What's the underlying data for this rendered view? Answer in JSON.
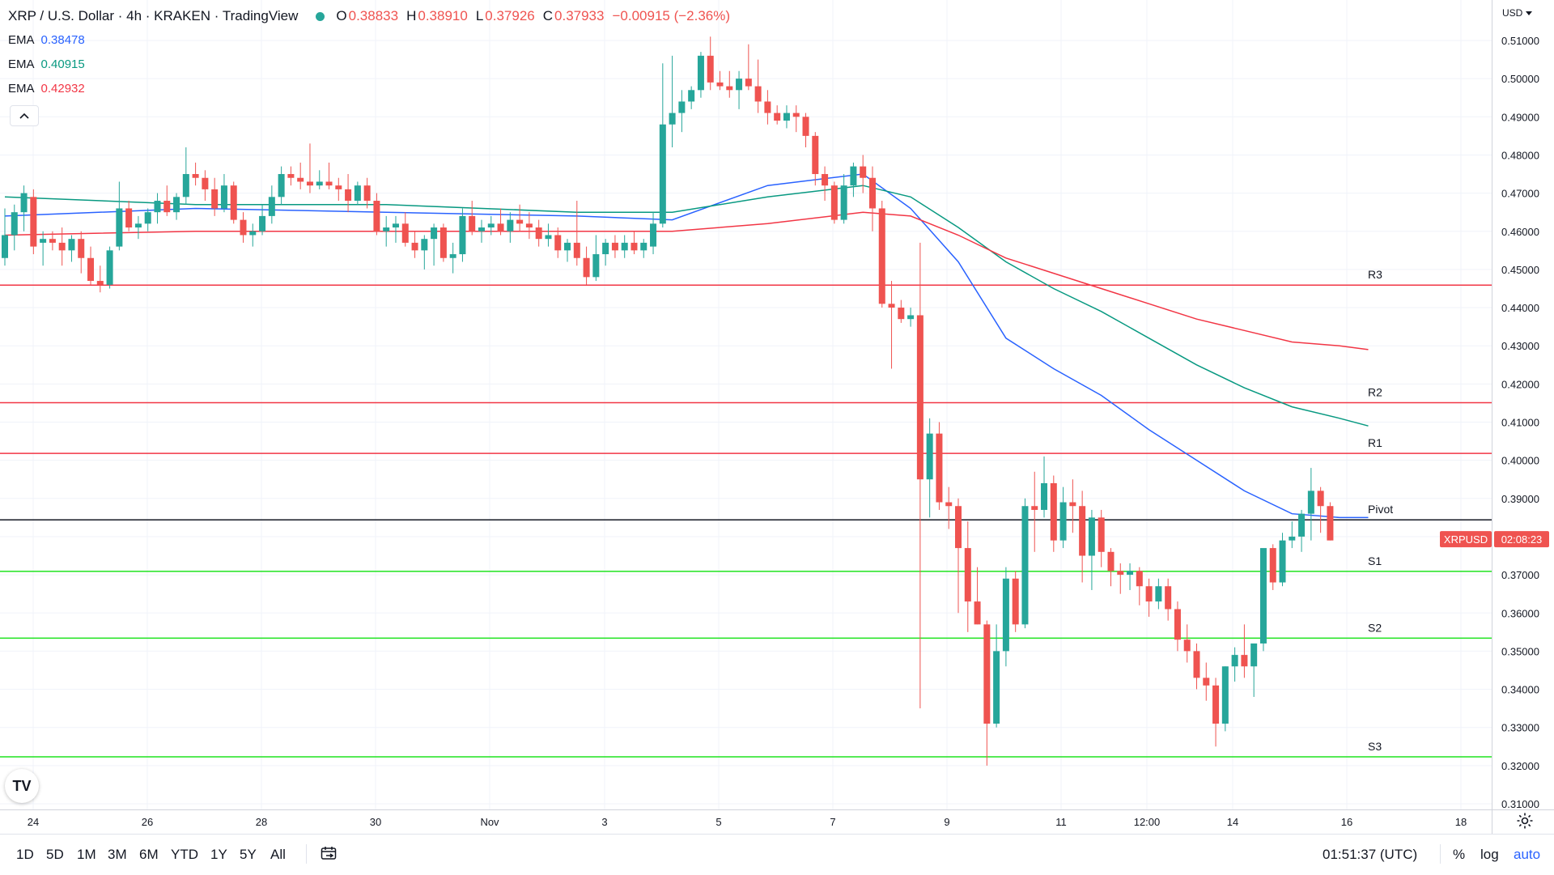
{
  "header": {
    "symbol": "XRP / U.S. Dollar · 4h · KRAKEN · TradingView",
    "ohlc": [
      {
        "label": "O",
        "value": "0.38833"
      },
      {
        "label": "H",
        "value": "0.38910"
      },
      {
        "label": "L",
        "value": "0.37926"
      },
      {
        "label": "C",
        "value": "0.37933"
      },
      {
        "label": "",
        "value": "−0.00915 (−2.36%)"
      }
    ],
    "status_color": "#26a69a"
  },
  "ema_rows": [
    {
      "name": "EMA",
      "value": "0.38478",
      "color": "#2962ff"
    },
    {
      "name": "EMA",
      "value": "0.40915",
      "color": "#089981"
    },
    {
      "name": "EMA",
      "value": "0.42932",
      "color": "#f23645"
    }
  ],
  "currency": "USD",
  "collapse_icon": "chevron-up-icon",
  "logo_text": "TV",
  "bottom": {
    "ranges": [
      "1D",
      "5D",
      "1M",
      "3M",
      "6M",
      "YTD",
      "1Y",
      "5Y",
      "All"
    ],
    "clock": "01:51:37 (UTC)",
    "options": [
      "%",
      "log",
      "auto"
    ],
    "auto_color": "#2962ff"
  },
  "chart_data": {
    "type": "candlestick",
    "title": "XRP / U.S. Dollar · 4h · KRAKEN",
    "ylim": [
      0.31,
      0.51
    ],
    "y_ticks": [
      "0.51000",
      "0.50000",
      "0.49000",
      "0.48000",
      "0.47000",
      "0.46000",
      "0.45000",
      "0.44000",
      "0.43000",
      "0.42000",
      "0.41000",
      "0.40000",
      "0.39000",
      "0.38000",
      "0.37000",
      "0.36000",
      "0.35000",
      "0.34000",
      "0.33000",
      "0.32000",
      "0.31000"
    ],
    "x_ticks": [
      "24",
      "26",
      "28",
      "30",
      "Nov",
      "3",
      "5",
      "7",
      "9",
      "11",
      "12:00",
      "14",
      "16",
      "18"
    ],
    "up_color": "#26a69a",
    "down_color": "#ef5350",
    "candles": [
      [
        0.453,
        0.466,
        0.451,
        0.459
      ],
      [
        0.459,
        0.467,
        0.455,
        0.465
      ],
      [
        0.465,
        0.472,
        0.46,
        0.47
      ],
      [
        0.469,
        0.471,
        0.454,
        0.456
      ],
      [
        0.457,
        0.46,
        0.451,
        0.458
      ],
      [
        0.458,
        0.46,
        0.455,
        0.457
      ],
      [
        0.457,
        0.461,
        0.451,
        0.455
      ],
      [
        0.455,
        0.459,
        0.452,
        0.458
      ],
      [
        0.458,
        0.46,
        0.449,
        0.453
      ],
      [
        0.453,
        0.456,
        0.446,
        0.447
      ],
      [
        0.447,
        0.451,
        0.444,
        0.446
      ],
      [
        0.446,
        0.456,
        0.445,
        0.455
      ],
      [
        0.456,
        0.473,
        0.455,
        0.466
      ],
      [
        0.466,
        0.468,
        0.46,
        0.461
      ],
      [
        0.461,
        0.464,
        0.458,
        0.462
      ],
      [
        0.462,
        0.466,
        0.46,
        0.465
      ],
      [
        0.465,
        0.47,
        0.462,
        0.468
      ],
      [
        0.468,
        0.472,
        0.464,
        0.465
      ],
      [
        0.465,
        0.47,
        0.463,
        0.469
      ],
      [
        0.469,
        0.482,
        0.467,
        0.475
      ],
      [
        0.475,
        0.478,
        0.472,
        0.474
      ],
      [
        0.474,
        0.476,
        0.468,
        0.471
      ],
      [
        0.471,
        0.474,
        0.464,
        0.466
      ],
      [
        0.466,
        0.475,
        0.465,
        0.472
      ],
      [
        0.472,
        0.473,
        0.462,
        0.463
      ],
      [
        0.463,
        0.465,
        0.457,
        0.459
      ],
      [
        0.459,
        0.462,
        0.456,
        0.46
      ],
      [
        0.46,
        0.467,
        0.459,
        0.464
      ],
      [
        0.464,
        0.472,
        0.462,
        0.469
      ],
      [
        0.469,
        0.477,
        0.467,
        0.475
      ],
      [
        0.475,
        0.477,
        0.472,
        0.474
      ],
      [
        0.474,
        0.478,
        0.471,
        0.473
      ],
      [
        0.473,
        0.483,
        0.47,
        0.472
      ],
      [
        0.472,
        0.476,
        0.471,
        0.473
      ],
      [
        0.473,
        0.478,
        0.471,
        0.472
      ],
      [
        0.472,
        0.474,
        0.468,
        0.471
      ],
      [
        0.471,
        0.475,
        0.465,
        0.468
      ],
      [
        0.468,
        0.473,
        0.467,
        0.472
      ],
      [
        0.472,
        0.474,
        0.466,
        0.468
      ],
      [
        0.468,
        0.47,
        0.459,
        0.46
      ],
      [
        0.46,
        0.464,
        0.456,
        0.461
      ],
      [
        0.461,
        0.464,
        0.457,
        0.462
      ],
      [
        0.462,
        0.465,
        0.456,
        0.457
      ],
      [
        0.457,
        0.46,
        0.453,
        0.455
      ],
      [
        0.455,
        0.459,
        0.45,
        0.458
      ],
      [
        0.458,
        0.462,
        0.451,
        0.461
      ],
      [
        0.461,
        0.462,
        0.452,
        0.453
      ],
      [
        0.453,
        0.457,
        0.449,
        0.454
      ],
      [
        0.454,
        0.466,
        0.452,
        0.464
      ],
      [
        0.464,
        0.468,
        0.459,
        0.46
      ],
      [
        0.46,
        0.463,
        0.457,
        0.461
      ],
      [
        0.461,
        0.464,
        0.459,
        0.462
      ],
      [
        0.462,
        0.466,
        0.459,
        0.46
      ],
      [
        0.46,
        0.465,
        0.457,
        0.463
      ],
      [
        0.463,
        0.467,
        0.46,
        0.462
      ],
      [
        0.462,
        0.465,
        0.458,
        0.461
      ],
      [
        0.461,
        0.463,
        0.456,
        0.458
      ],
      [
        0.458,
        0.462,
        0.456,
        0.459
      ],
      [
        0.459,
        0.461,
        0.453,
        0.455
      ],
      [
        0.455,
        0.458,
        0.452,
        0.457
      ],
      [
        0.457,
        0.468,
        0.451,
        0.453
      ],
      [
        0.453,
        0.456,
        0.446,
        0.448
      ],
      [
        0.448,
        0.459,
        0.447,
        0.454
      ],
      [
        0.454,
        0.458,
        0.451,
        0.457
      ],
      [
        0.457,
        0.459,
        0.453,
        0.455
      ],
      [
        0.455,
        0.459,
        0.453,
        0.457
      ],
      [
        0.457,
        0.46,
        0.454,
        0.455
      ],
      [
        0.455,
        0.458,
        0.453,
        0.457
      ],
      [
        0.456,
        0.465,
        0.454,
        0.462
      ],
      [
        0.462,
        0.504,
        0.461,
        0.488
      ],
      [
        0.488,
        0.506,
        0.482,
        0.491
      ],
      [
        0.491,
        0.497,
        0.486,
        0.494
      ],
      [
        0.494,
        0.498,
        0.492,
        0.497
      ],
      [
        0.497,
        0.507,
        0.495,
        0.506
      ],
      [
        0.506,
        0.511,
        0.497,
        0.499
      ],
      [
        0.499,
        0.502,
        0.497,
        0.498
      ],
      [
        0.498,
        0.502,
        0.495,
        0.497
      ],
      [
        0.497,
        0.502,
        0.492,
        0.5
      ],
      [
        0.5,
        0.509,
        0.497,
        0.498
      ],
      [
        0.498,
        0.505,
        0.491,
        0.494
      ],
      [
        0.494,
        0.497,
        0.488,
        0.491
      ],
      [
        0.491,
        0.493,
        0.488,
        0.489
      ],
      [
        0.489,
        0.493,
        0.487,
        0.491
      ],
      [
        0.491,
        0.493,
        0.486,
        0.49
      ],
      [
        0.49,
        0.491,
        0.482,
        0.485
      ],
      [
        0.485,
        0.486,
        0.472,
        0.475
      ],
      [
        0.475,
        0.477,
        0.468,
        0.472
      ],
      [
        0.472,
        0.473,
        0.462,
        0.463
      ],
      [
        0.463,
        0.475,
        0.462,
        0.472
      ],
      [
        0.472,
        0.478,
        0.469,
        0.477
      ],
      [
        0.477,
        0.48,
        0.47,
        0.474
      ],
      [
        0.474,
        0.477,
        0.46,
        0.466
      ],
      [
        0.466,
        0.468,
        0.44,
        0.441
      ],
      [
        0.441,
        0.447,
        0.424,
        0.44
      ],
      [
        0.44,
        0.442,
        0.436,
        0.437
      ],
      [
        0.437,
        0.44,
        0.435,
        0.438
      ],
      [
        0.438,
        0.457,
        0.335,
        0.395
      ],
      [
        0.395,
        0.411,
        0.385,
        0.407
      ],
      [
        0.407,
        0.41,
        0.387,
        0.389
      ],
      [
        0.389,
        0.393,
        0.382,
        0.388
      ],
      [
        0.388,
        0.39,
        0.36,
        0.377
      ],
      [
        0.377,
        0.384,
        0.355,
        0.363
      ],
      [
        0.363,
        0.372,
        0.357,
        0.357
      ],
      [
        0.357,
        0.358,
        0.32,
        0.331
      ],
      [
        0.331,
        0.357,
        0.33,
        0.35
      ],
      [
        0.35,
        0.372,
        0.346,
        0.369
      ],
      [
        0.369,
        0.371,
        0.355,
        0.357
      ],
      [
        0.357,
        0.39,
        0.356,
        0.388
      ],
      [
        0.388,
        0.397,
        0.376,
        0.387
      ],
      [
        0.387,
        0.401,
        0.385,
        0.394
      ],
      [
        0.394,
        0.396,
        0.376,
        0.379
      ],
      [
        0.379,
        0.393,
        0.377,
        0.389
      ],
      [
        0.389,
        0.395,
        0.381,
        0.388
      ],
      [
        0.388,
        0.392,
        0.368,
        0.375
      ],
      [
        0.375,
        0.387,
        0.366,
        0.385
      ],
      [
        0.385,
        0.387,
        0.372,
        0.376
      ],
      [
        0.376,
        0.377,
        0.367,
        0.371
      ],
      [
        0.371,
        0.373,
        0.365,
        0.37
      ],
      [
        0.37,
        0.373,
        0.366,
        0.371
      ],
      [
        0.371,
        0.372,
        0.362,
        0.367
      ],
      [
        0.367,
        0.369,
        0.359,
        0.363
      ],
      [
        0.363,
        0.369,
        0.361,
        0.367
      ],
      [
        0.367,
        0.369,
        0.358,
        0.361
      ],
      [
        0.361,
        0.363,
        0.35,
        0.353
      ],
      [
        0.353,
        0.357,
        0.347,
        0.35
      ],
      [
        0.35,
        0.352,
        0.34,
        0.343
      ],
      [
        0.343,
        0.347,
        0.337,
        0.341
      ],
      [
        0.341,
        0.343,
        0.325,
        0.331
      ],
      [
        0.331,
        0.346,
        0.329,
        0.346
      ],
      [
        0.346,
        0.351,
        0.342,
        0.349
      ],
      [
        0.349,
        0.357,
        0.343,
        0.346
      ],
      [
        0.346,
        0.352,
        0.338,
        0.352
      ],
      [
        0.352,
        0.376,
        0.35,
        0.377
      ],
      [
        0.377,
        0.378,
        0.366,
        0.368
      ],
      [
        0.368,
        0.381,
        0.367,
        0.379
      ],
      [
        0.379,
        0.384,
        0.377,
        0.38
      ],
      [
        0.38,
        0.387,
        0.376,
        0.386
      ],
      [
        0.386,
        0.398,
        0.379,
        0.392
      ],
      [
        0.392,
        0.393,
        0.381,
        0.388
      ],
      [
        0.388,
        0.389,
        0.379,
        0.379
      ]
    ],
    "ema_series": [
      {
        "name": "EMA",
        "value_label": "0.38478",
        "color": "#2962ff",
        "points": [
          [
            0,
            0.464
          ],
          [
            20,
            0.466
          ],
          [
            40,
            0.465
          ],
          [
            60,
            0.464
          ],
          [
            70,
            0.463
          ],
          [
            80,
            0.472
          ],
          [
            90,
            0.475
          ],
          [
            95,
            0.466
          ],
          [
            100,
            0.452
          ],
          [
            105,
            0.432
          ],
          [
            110,
            0.424
          ],
          [
            115,
            0.417
          ],
          [
            120,
            0.408
          ],
          [
            125,
            0.4
          ],
          [
            130,
            0.392
          ],
          [
            135,
            0.386
          ],
          [
            140,
            0.385
          ],
          [
            143,
            0.385
          ]
        ]
      },
      {
        "name": "EMA",
        "value_label": "0.40915",
        "color": "#089981",
        "points": [
          [
            0,
            0.469
          ],
          [
            20,
            0.467
          ],
          [
            40,
            0.467
          ],
          [
            60,
            0.465
          ],
          [
            70,
            0.465
          ],
          [
            80,
            0.469
          ],
          [
            90,
            0.472
          ],
          [
            95,
            0.469
          ],
          [
            100,
            0.461
          ],
          [
            105,
            0.452
          ],
          [
            110,
            0.445
          ],
          [
            115,
            0.439
          ],
          [
            120,
            0.432
          ],
          [
            125,
            0.425
          ],
          [
            130,
            0.419
          ],
          [
            135,
            0.414
          ],
          [
            140,
            0.411
          ],
          [
            143,
            0.409
          ]
        ]
      },
      {
        "name": "EMA",
        "value_label": "0.42932",
        "color": "#f23645",
        "points": [
          [
            0,
            0.459
          ],
          [
            20,
            0.46
          ],
          [
            40,
            0.46
          ],
          [
            60,
            0.46
          ],
          [
            70,
            0.46
          ],
          [
            80,
            0.462
          ],
          [
            90,
            0.465
          ],
          [
            95,
            0.464
          ],
          [
            100,
            0.459
          ],
          [
            105,
            0.453
          ],
          [
            110,
            0.449
          ],
          [
            115,
            0.445
          ],
          [
            120,
            0.441
          ],
          [
            125,
            0.437
          ],
          [
            130,
            0.434
          ],
          [
            135,
            0.431
          ],
          [
            140,
            0.43
          ],
          [
            143,
            0.429
          ]
        ]
      }
    ],
    "levels": [
      {
        "name": "R3",
        "value": 0.4459,
        "color": "#f23645"
      },
      {
        "name": "R2",
        "value": 0.4151,
        "color": "#f23645"
      },
      {
        "name": "R1",
        "value": 0.4018,
        "color": "#f23645"
      },
      {
        "name": "Pivot",
        "value": 0.3844,
        "color": "#131722"
      },
      {
        "name": "S1",
        "value": 0.3709,
        "color": "#1ee31e"
      },
      {
        "name": "S2",
        "value": 0.3534,
        "color": "#1ee31e"
      },
      {
        "name": "S3",
        "value": 0.3223,
        "color": "#1ee31e"
      }
    ],
    "last_price": {
      "symbol": "XRPUSD",
      "value": 0.37933,
      "countdown": "02:08:23",
      "color": "#ef5350"
    }
  }
}
